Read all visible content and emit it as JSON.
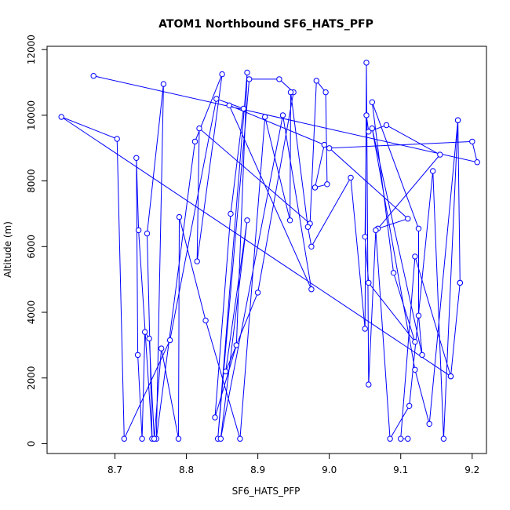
{
  "chart_data": {
    "type": "line",
    "title": "ATOM1 Northbound SF6_HATS_PFP",
    "xlabel": "SF6_HATS_PFP",
    "ylabel": "Altitude (m)",
    "xlim": [
      8.605,
      9.22
    ],
    "ylim": [
      -300,
      12100
    ],
    "xticks": [
      8.7,
      8.8,
      8.9,
      9.0,
      9.1,
      9.2
    ],
    "xtick_labels": [
      "8.7",
      "8.8",
      "8.9",
      "9.0",
      "9.1",
      "9.2"
    ],
    "yticks": [
      0,
      2000,
      4000,
      6000,
      8000,
      10000,
      12000
    ],
    "ytick_labels": [
      "0",
      "2000",
      "4000",
      "6000",
      "8000",
      "10000",
      "12000"
    ],
    "grid": false,
    "color": "#0000ff",
    "series": [
      {
        "x": [
          8.67,
          9.207,
          9.2,
          9.0,
          9.11,
          9.068,
          9.155,
          9.08,
          9.055,
          9.052,
          9.05,
          9.055,
          9.12,
          9.09,
          9.06,
          9.125,
          9.125,
          9.13,
          9.06,
          9.12,
          9.14,
          9.18,
          9.183,
          9.17,
          8.625,
          8.703,
          8.713,
          8.777,
          8.842,
          8.88,
          8.862,
          8.84,
          8.87,
          8.885,
          8.844,
          8.888,
          8.93,
          8.95,
          8.9,
          8.855,
          8.885,
          8.848,
          8.935,
          8.975,
          8.86,
          8.993,
          8.98,
          8.997,
          8.995,
          8.982,
          8.973,
          8.818,
          8.815,
          8.85,
          8.812,
          8.758,
          8.768,
          8.745,
          8.752,
          8.733,
          8.73,
          8.732,
          8.738,
          8.742,
          8.748,
          8.755,
          8.765,
          8.789,
          8.79,
          8.827,
          8.875,
          8.91,
          8.945,
          8.946,
          8.97,
          8.975,
          9.03,
          9.05,
          9.052,
          9.055,
          9.065,
          9.085,
          9.112,
          9.145,
          9.16,
          9.18,
          9.183,
          9.17,
          9.12,
          9.1,
          9.11
        ],
        "y": [
          11200,
          8570,
          9200,
          9000,
          6850,
          6550,
          8800,
          9700,
          9500,
          10000,
          6300,
          4900,
          3100,
          5200,
          10400,
          6550,
          3900,
          2700,
          9600,
          2250,
          600,
          9850,
          4900,
          2050,
          9950,
          9280,
          150,
          3150,
          10500,
          10200,
          7000,
          800,
          3000,
          11300,
          150,
          11100,
          11100,
          10700,
          4600,
          2200,
          6800,
          150,
          10000,
          4700,
          10300,
          9100,
          7800,
          7900,
          10700,
          11050,
          6700,
          9600,
          5550,
          11250,
          9200,
          150,
          10950,
          6400,
          150,
          6500,
          8700,
          2700,
          150,
          3400,
          3200,
          150,
          2900,
          150,
          6900,
          3750,
          150,
          9950,
          6800,
          10700,
          6600,
          6000,
          8100,
          3500,
          11600,
          1800,
          6500,
          150,
          1150,
          8300,
          150,
          9850,
          4900,
          2050,
          5700,
          150,
          150
        ]
      }
    ]
  }
}
